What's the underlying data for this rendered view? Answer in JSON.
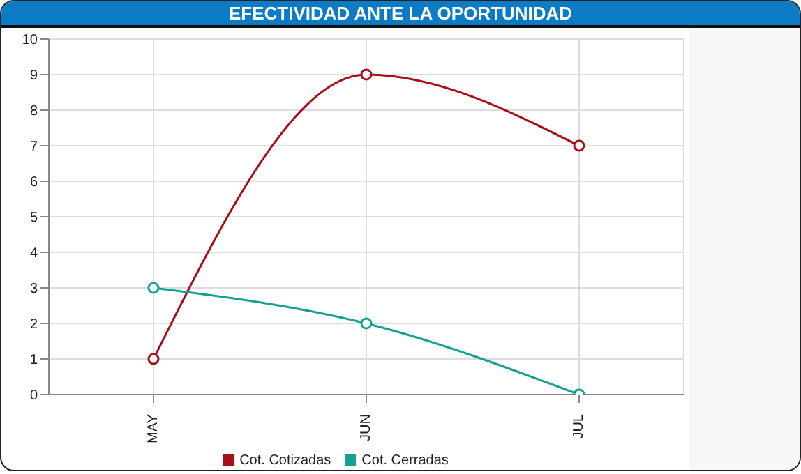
{
  "chart_data": {
    "type": "line",
    "title": "EFECTIVIDAD ANTE LA OPORTUNIDAD",
    "categories": [
      "MAY",
      "JUN",
      "JUL"
    ],
    "series": [
      {
        "name": "Cot. Cotizadas",
        "color": "#a80e16",
        "values": [
          1,
          9,
          7
        ]
      },
      {
        "name": "Cot. Cerradas",
        "color": "#15a192",
        "values": [
          3,
          2,
          0
        ]
      }
    ],
    "ylim": [
      0,
      10
    ],
    "yticks": [
      0,
      1,
      2,
      3,
      4,
      5,
      6,
      7,
      8,
      9,
      10
    ],
    "grid": true,
    "legend": "bottom",
    "marker": "circle",
    "line_style": "solid"
  }
}
